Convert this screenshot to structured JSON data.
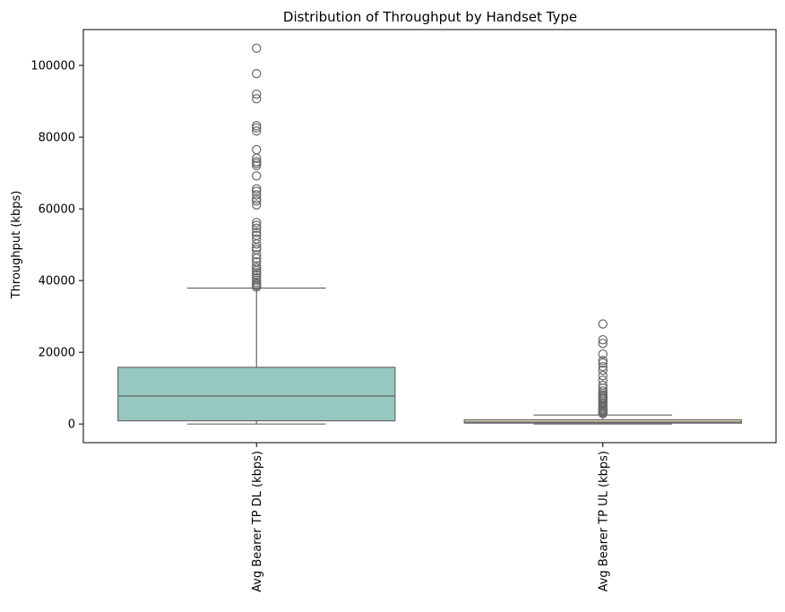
{
  "chart_data": {
    "type": "box",
    "title": "Distribution of Throughput by Handset Type",
    "xlabel": "",
    "ylabel": "Throughput (kbps)",
    "ylim": [
      -5200,
      110000
    ],
    "yticks": [
      0,
      20000,
      40000,
      60000,
      80000,
      100000
    ],
    "ytick_labels": [
      "0",
      "20000",
      "40000",
      "60000",
      "80000",
      "100000"
    ],
    "grid": false,
    "categories": [
      "Avg Bearer TP DL (kbps)",
      "Avg Bearer TP UL (kbps)"
    ],
    "boxes": [
      {
        "category": "Avg Bearer TP DL (kbps)",
        "color": "#96c8c0",
        "whisker_low": 0,
        "q1": 900,
        "median": 7800,
        "q3": 15800,
        "whisker_high": 37900,
        "outliers": [
          104800,
          97700,
          92000,
          90700,
          83200,
          82600,
          81700,
          76500,
          74100,
          73200,
          72700,
          72100,
          69200,
          65600,
          64900,
          63900,
          62800,
          62200,
          61100,
          56200,
          55400,
          54600,
          53400,
          52600,
          51600,
          50200,
          49200,
          48600,
          47200,
          46200,
          45200,
          44100,
          43500,
          42800,
          42200,
          41500,
          40800,
          40100,
          39500,
          39000,
          38600,
          38200
        ]
      },
      {
        "category": "Avg Bearer TP UL (kbps)",
        "color": "#f2ecbf",
        "whisker_low": 0,
        "q1": 250,
        "median": 550,
        "q3": 1150,
        "whisker_high": 2500,
        "outliers": [
          27900,
          23500,
          22500,
          19500,
          17700,
          17000,
          16000,
          15000,
          13500,
          12200,
          10800,
          10000,
          9200,
          8600,
          8100,
          7700,
          7300,
          6900,
          6400,
          5900,
          5400,
          4900,
          4500,
          4100,
          3800,
          3500,
          3200,
          2900
        ]
      }
    ]
  }
}
